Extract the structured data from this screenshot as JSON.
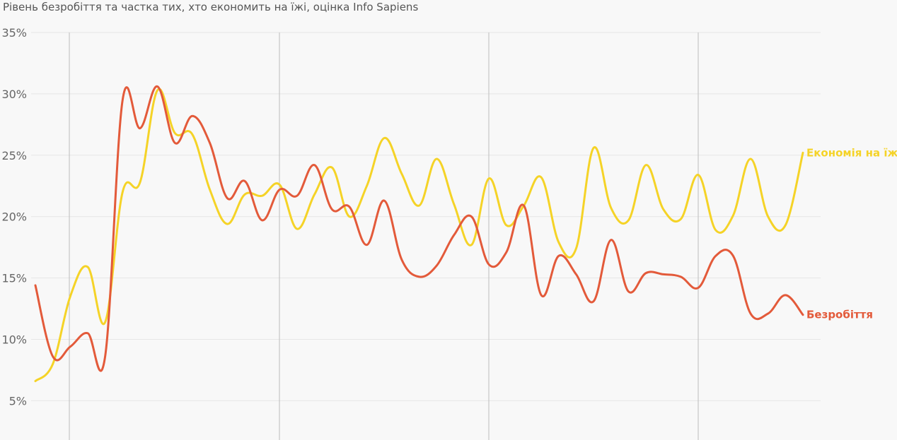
{
  "chart_data": {
    "type": "line",
    "title": "Рівень безробіття та частка тих, хто економить на їжі, оцінка Info Sapiens",
    "xlabel": "",
    "ylabel": "",
    "ylim": [
      3,
      35
    ],
    "yticks": [
      5,
      10,
      15,
      20,
      25,
      30,
      35
    ],
    "ytick_labels": [
      "5%",
      "10%",
      "15%",
      "20%",
      "25%",
      "30%",
      "35%"
    ],
    "grid": true,
    "legend": "direct labels at line ends",
    "x": [
      0,
      1,
      2,
      3,
      4,
      5,
      6,
      7,
      8,
      9,
      10,
      11,
      12,
      13,
      14,
      15,
      16,
      17,
      18,
      19,
      20,
      21,
      22,
      23,
      24,
      25,
      26,
      27,
      28,
      29,
      30,
      31,
      32,
      33,
      34,
      35,
      36,
      37,
      38,
      39,
      40,
      41,
      42,
      43,
      44
    ],
    "series": [
      {
        "name": "Економія на їжі",
        "color": "#f5d327",
        "values": [
          6.6,
          8.0,
          13.5,
          15.9,
          11.4,
          22.0,
          22.8,
          30.3,
          26.8,
          26.7,
          22.2,
          19.4,
          21.8,
          21.7,
          22.6,
          19.0,
          21.8,
          24.0,
          20.0,
          22.5,
          26.4,
          23.5,
          20.9,
          24.7,
          21.0,
          17.7,
          23.1,
          19.3,
          20.9,
          23.2,
          17.9,
          17.4,
          25.6,
          20.7,
          19.7,
          24.2,
          20.6,
          19.8,
          23.4,
          18.9,
          20.1,
          24.7,
          20.0,
          19.3,
          25.2
        ]
      },
      {
        "name": "Безробіття",
        "color": "#e35a3a",
        "values": [
          14.4,
          8.6,
          9.4,
          10.5,
          8.6,
          29.5,
          27.2,
          30.6,
          26.0,
          28.2,
          26.0,
          21.5,
          22.9,
          19.7,
          22.2,
          21.7,
          24.2,
          20.6,
          20.8,
          17.7,
          21.3,
          16.5,
          15.1,
          16.0,
          18.5,
          20.0,
          16.1,
          17.1,
          20.9,
          13.6,
          16.8,
          15.3,
          13.1,
          18.1,
          13.9,
          15.4,
          15.3,
          15.1,
          14.2,
          16.8,
          16.8,
          12.1,
          12.1,
          13.6,
          12.0
        ]
      }
    ]
  }
}
